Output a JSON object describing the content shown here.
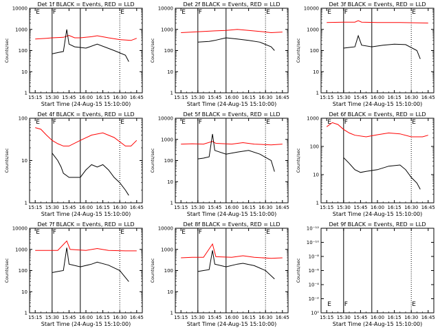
{
  "figure": {
    "xlabel": "Start Time (24-Aug-15 15:10:00)",
    "ylabel": "Counts/sec",
    "x_tick_labels": [
      "15:15",
      "15:30",
      "15:45",
      "16:00",
      "16:15",
      "16:30",
      "16:45"
    ],
    "colors": {
      "events": "#000000",
      "lld": "#ff0000"
    }
  },
  "chart_data": [
    {
      "type": "line",
      "title": "Det 1f BLACK = Events, RED = LLD",
      "x_minutes": [
        5,
        35
      ],
      "ylim": [
        1,
        10000
      ],
      "yscale": "log",
      "ytick_labels": [
        "1",
        "10",
        "100",
        "1000",
        "10000"
      ],
      "markers": [
        {
          "label": "E",
          "x": 5
        },
        {
          "label": "F",
          "x": 20
        },
        {
          "label": "E",
          "x": 80
        }
      ],
      "series": [
        {
          "color": "#ff0000",
          "values": [
            [
              5,
              350
            ],
            [
              15,
              380
            ],
            [
              20,
              400
            ],
            [
              30,
              420
            ],
            [
              35,
              520
            ],
            [
              40,
              400
            ],
            [
              45,
              400
            ],
            [
              55,
              450
            ],
            [
              60,
              500
            ],
            [
              70,
              400
            ],
            [
              80,
              330
            ],
            [
              90,
              300
            ],
            [
              95,
              380
            ]
          ]
        },
        {
          "color": "#000000",
          "values": [
            [
              20,
              70
            ],
            [
              25,
              80
            ],
            [
              30,
              90
            ],
            [
              33,
              1000
            ],
            [
              35,
              200
            ],
            [
              40,
              150
            ],
            [
              50,
              130
            ],
            [
              60,
              200
            ],
            [
              75,
              100
            ],
            [
              85,
              60
            ],
            [
              88,
              30
            ]
          ]
        }
      ]
    },
    {
      "type": "line",
      "title": "Det 2f BLACK = Events, RED = LLD",
      "ylim": [
        1,
        10000
      ],
      "yscale": "log",
      "ytick_labels": [
        "1",
        "10",
        "100",
        "1000",
        "10000"
      ],
      "markers": [
        {
          "label": "E",
          "x": 5
        },
        {
          "label": "F",
          "x": 20
        },
        {
          "label": "E",
          "x": 80
        }
      ],
      "series": [
        {
          "color": "#ff0000",
          "values": [
            [
              5,
              700
            ],
            [
              15,
              750
            ],
            [
              25,
              800
            ],
            [
              35,
              850
            ],
            [
              45,
              900
            ],
            [
              55,
              1000
            ],
            [
              65,
              900
            ],
            [
              75,
              800
            ],
            [
              85,
              700
            ],
            [
              95,
              750
            ]
          ]
        },
        {
          "color": "#000000",
          "values": [
            [
              20,
              250
            ],
            [
              25,
              260
            ],
            [
              30,
              270
            ],
            [
              35,
              300
            ],
            [
              45,
              400
            ],
            [
              55,
              350
            ],
            [
              65,
              300
            ],
            [
              75,
              250
            ],
            [
              85,
              150
            ],
            [
              88,
              100
            ]
          ]
        }
      ]
    },
    {
      "type": "line",
      "title": "Det 3f BLACK = Events, RED = LLD",
      "ylim": [
        1,
        10000
      ],
      "yscale": "log",
      "ytick_labels": [
        "1",
        "10",
        "100",
        "1000",
        "10000"
      ],
      "markers": [
        {
          "label": "E",
          "x": 5
        },
        {
          "label": "F",
          "x": 20
        },
        {
          "label": "E",
          "x": 80
        }
      ],
      "series": [
        {
          "color": "#ff0000",
          "values": [
            [
              5,
              2100
            ],
            [
              20,
              2200
            ],
            [
              30,
              2200
            ],
            [
              33,
              2600
            ],
            [
              36,
              2200
            ],
            [
              50,
              2100
            ],
            [
              70,
              2100
            ],
            [
              95,
              2000
            ]
          ]
        },
        {
          "color": "#000000",
          "values": [
            [
              20,
              130
            ],
            [
              25,
              140
            ],
            [
              30,
              150
            ],
            [
              33,
              500
            ],
            [
              36,
              180
            ],
            [
              45,
              150
            ],
            [
              55,
              180
            ],
            [
              65,
              200
            ],
            [
              75,
              190
            ],
            [
              85,
              100
            ],
            [
              88,
              40
            ]
          ]
        }
      ]
    },
    {
      "type": "line",
      "title": "Det 4f BLACK = Events, RED = LLD",
      "ylim": [
        1,
        100
      ],
      "yscale": "log",
      "ytick_labels": [
        "1",
        "10",
        "100"
      ],
      "markers": [
        {
          "label": "E",
          "x": 5
        },
        {
          "label": "F",
          "x": 20
        },
        {
          "label": "E",
          "x": 80
        }
      ],
      "series": [
        {
          "color": "#ff0000",
          "values": [
            [
              5,
              60
            ],
            [
              10,
              55
            ],
            [
              15,
              40
            ],
            [
              20,
              30
            ],
            [
              25,
              25
            ],
            [
              30,
              22
            ],
            [
              35,
              22
            ],
            [
              45,
              30
            ],
            [
              55,
              40
            ],
            [
              65,
              45
            ],
            [
              75,
              35
            ],
            [
              85,
              22
            ],
            [
              90,
              22
            ],
            [
              95,
              30
            ]
          ]
        },
        {
          "color": "#000000",
          "values": [
            [
              20,
              15
            ],
            [
              25,
              10
            ],
            [
              28,
              7
            ],
            [
              30,
              5
            ],
            [
              35,
              4
            ],
            [
              40,
              4
            ],
            [
              45,
              4
            ],
            [
              50,
              6
            ],
            [
              55,
              8
            ],
            [
              60,
              7
            ],
            [
              65,
              8
            ],
            [
              70,
              6
            ],
            [
              75,
              4
            ],
            [
              80,
              3
            ],
            [
              85,
              2
            ],
            [
              88,
              1.5
            ]
          ]
        }
      ]
    },
    {
      "type": "line",
      "title": "Det 5f BLACK = Events, RED = LLD",
      "ylim": [
        1,
        10000
      ],
      "yscale": "log",
      "ytick_labels": [
        "1",
        "10",
        "100",
        "1000",
        "10000"
      ],
      "markers": [
        {
          "label": "E",
          "x": 5
        },
        {
          "label": "F",
          "x": 20
        },
        {
          "label": "E",
          "x": 80
        }
      ],
      "series": [
        {
          "color": "#ff0000",
          "values": [
            [
              5,
              600
            ],
            [
              15,
              620
            ],
            [
              25,
              600
            ],
            [
              33,
              800
            ],
            [
              36,
              650
            ],
            [
              50,
              600
            ],
            [
              60,
              700
            ],
            [
              70,
              600
            ],
            [
              85,
              550
            ],
            [
              95,
              600
            ]
          ]
        },
        {
          "color": "#000000",
          "values": [
            [
              20,
              120
            ],
            [
              25,
              130
            ],
            [
              30,
              150
            ],
            [
              33,
              1800
            ],
            [
              35,
              300
            ],
            [
              45,
              200
            ],
            [
              55,
              250
            ],
            [
              65,
              300
            ],
            [
              75,
              200
            ],
            [
              85,
              100
            ],
            [
              88,
              30
            ]
          ]
        }
      ]
    },
    {
      "type": "line",
      "title": "Det 6f BLACK = Events, RED = LLD",
      "ylim": [
        1,
        1000
      ],
      "yscale": "log",
      "ytick_labels": [
        "1",
        "10",
        "100",
        "1000"
      ],
      "markers": [
        {
          "label": "E",
          "x": 5
        },
        {
          "label": "F",
          "x": 20
        },
        {
          "label": "E",
          "x": 80
        }
      ],
      "series": [
        {
          "color": "#ff0000",
          "values": [
            [
              5,
              500
            ],
            [
              10,
              700
            ],
            [
              15,
              600
            ],
            [
              20,
              400
            ],
            [
              25,
              300
            ],
            [
              30,
              250
            ],
            [
              40,
              220
            ],
            [
              50,
              260
            ],
            [
              60,
              300
            ],
            [
              70,
              280
            ],
            [
              80,
              220
            ],
            [
              90,
              220
            ],
            [
              95,
              250
            ]
          ]
        },
        {
          "color": "#000000",
          "values": [
            [
              20,
              40
            ],
            [
              25,
              25
            ],
            [
              30,
              15
            ],
            [
              35,
              12
            ],
            [
              40,
              13
            ],
            [
              50,
              15
            ],
            [
              60,
              20
            ],
            [
              70,
              22
            ],
            [
              75,
              15
            ],
            [
              80,
              8
            ],
            [
              85,
              5
            ],
            [
              88,
              3
            ]
          ]
        }
      ]
    },
    {
      "type": "line",
      "title": "Det 7f BLACK = Events, RED = LLD",
      "ylim": [
        1,
        10000
      ],
      "yscale": "log",
      "ytick_labels": [
        "1",
        "10",
        "100",
        "1000",
        "10000"
      ],
      "markers": [
        {
          "label": "E",
          "x": 5
        },
        {
          "label": "F",
          "x": 20
        },
        {
          "label": "E",
          "x": 80
        }
      ],
      "series": [
        {
          "color": "#ff0000",
          "values": [
            [
              5,
              900
            ],
            [
              15,
              900
            ],
            [
              25,
              900
            ],
            [
              33,
              2500
            ],
            [
              36,
              1000
            ],
            [
              50,
              900
            ],
            [
              60,
              1100
            ],
            [
              70,
              900
            ],
            [
              85,
              850
            ],
            [
              95,
              850
            ]
          ]
        },
        {
          "color": "#000000",
          "values": [
            [
              20,
              80
            ],
            [
              25,
              90
            ],
            [
              30,
              100
            ],
            [
              33,
              1200
            ],
            [
              35,
              200
            ],
            [
              45,
              150
            ],
            [
              55,
              200
            ],
            [
              60,
              250
            ],
            [
              70,
              180
            ],
            [
              80,
              100
            ],
            [
              88,
              30
            ]
          ]
        }
      ]
    },
    {
      "type": "line",
      "title": "Det 8f BLACK = Events, RED = LLD",
      "ylim": [
        1,
        10000
      ],
      "yscale": "log",
      "ytick_labels": [
        "1",
        "10",
        "100",
        "1000",
        "10000"
      ],
      "markers": [
        {
          "label": "E",
          "x": 5
        },
        {
          "label": "F",
          "x": 20
        },
        {
          "label": "E",
          "x": 80
        }
      ],
      "series": [
        {
          "color": "#ff0000",
          "values": [
            [
              5,
              400
            ],
            [
              15,
              420
            ],
            [
              25,
              420
            ],
            [
              33,
              1800
            ],
            [
              36,
              450
            ],
            [
              50,
              420
            ],
            [
              60,
              500
            ],
            [
              70,
              420
            ],
            [
              85,
              380
            ],
            [
              95,
              400
            ]
          ]
        },
        {
          "color": "#000000",
          "values": [
            [
              20,
              90
            ],
            [
              25,
              100
            ],
            [
              30,
              110
            ],
            [
              33,
              900
            ],
            [
              35,
              200
            ],
            [
              45,
              150
            ],
            [
              55,
              200
            ],
            [
              60,
              220
            ],
            [
              70,
              170
            ],
            [
              80,
              100
            ],
            [
              88,
              40
            ]
          ]
        }
      ]
    },
    {
      "type": "line",
      "title": "Det 9f BLACK = Events, RED = LLD",
      "ylim": [
        1e-12,
        1
      ],
      "yscale": "log",
      "ytick_labels": [
        "10⁰",
        "10⁻²",
        "10⁻⁴",
        "10⁻⁶",
        "10⁻⁸",
        "10⁻¹⁰",
        "10⁻¹²"
      ],
      "markers": [
        {
          "label": "E",
          "x": 5
        },
        {
          "label": "F",
          "x": 20
        },
        {
          "label": "E",
          "x": 80
        }
      ],
      "series": []
    }
  ]
}
